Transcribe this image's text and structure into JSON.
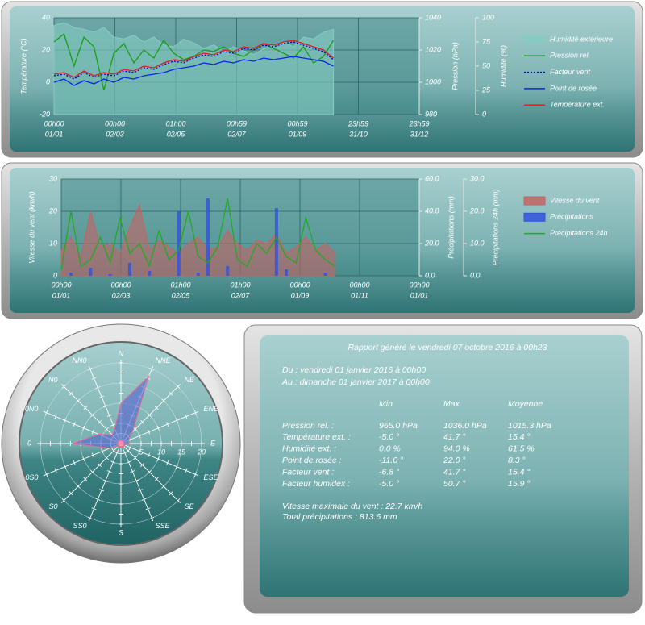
{
  "chart_data": [
    {
      "type": "line",
      "ylabel": "Température (°C)",
      "y2label": "Pression (hPa)",
      "y3label": "Humidité (%)",
      "x": [
        0,
        10,
        20,
        30,
        40,
        50,
        60,
        70,
        80,
        90,
        100,
        110,
        120,
        130,
        140,
        150,
        160,
        170,
        180,
        190,
        200,
        210,
        220,
        230,
        240,
        250,
        260,
        270,
        280
      ],
      "xlim": [
        0,
        366
      ],
      "xticks": [
        {
          "value": 0,
          "label": [
            "00h00",
            "01/01"
          ]
        },
        {
          "value": 61,
          "label": [
            "00h00",
            "02/03"
          ]
        },
        {
          "value": 122,
          "label": [
            "01h00",
            "02/05"
          ]
        },
        {
          "value": 183,
          "label": [
            "00h59",
            "02/07"
          ]
        },
        {
          "value": 244,
          "label": [
            "00h59",
            "01/09"
          ]
        },
        {
          "value": 305,
          "label": [
            "23h59",
            "31/10"
          ]
        },
        {
          "value": 366,
          "label": [
            "23h59",
            "31/12"
          ]
        }
      ],
      "ylim": [
        -20,
        40
      ],
      "yticks": [
        -20,
        0,
        20,
        40
      ],
      "y2lim": [
        980,
        1040
      ],
      "y2ticks": [
        980,
        1000,
        1020,
        1040
      ],
      "y3lim": [
        0,
        100
      ],
      "y3ticks": [
        0,
        25,
        50,
        75,
        100
      ],
      "grid": true,
      "series": [
        {
          "name": "Humidité extérieure",
          "color": "#86cbc2",
          "style": "area",
          "axis": "y3",
          "values": [
            92,
            95,
            90,
            88,
            85,
            90,
            80,
            78,
            82,
            75,
            80,
            72,
            70,
            78,
            74,
            68,
            72,
            65,
            70,
            66,
            62,
            68,
            72,
            75,
            70,
            80,
            78,
            85,
            88
          ]
        },
        {
          "name": "Pression rel.",
          "color": "#15a015",
          "style": "line",
          "axis": "y2",
          "values": [
            1025,
            1030,
            1010,
            1028,
            1022,
            995,
            1018,
            1024,
            1012,
            1020,
            1015,
            1026,
            1018,
            1014,
            1016,
            1020,
            1019,
            1022,
            1018,
            1016,
            1020,
            1024,
            1021,
            1018,
            1015,
            1022,
            1012,
            1016,
            1026
          ]
        },
        {
          "name": "Facteur vent",
          "color": "#0000cc",
          "style": "dotted",
          "axis": "y",
          "values": [
            4,
            5,
            2,
            6,
            3,
            5,
            4,
            7,
            6,
            9,
            8,
            11,
            13,
            12,
            15,
            17,
            16,
            19,
            18,
            21,
            20,
            23,
            22,
            24,
            25,
            23,
            21,
            19,
            14
          ]
        },
        {
          "name": "Point de rosée",
          "color": "#0a24ee",
          "style": "line",
          "axis": "y",
          "values": [
            0,
            2,
            -2,
            1,
            -1,
            2,
            0,
            3,
            2,
            4,
            5,
            6,
            8,
            9,
            10,
            12,
            11,
            13,
            12,
            14,
            13,
            15,
            14,
            15,
            16,
            15,
            14,
            13,
            10
          ]
        },
        {
          "name": "Température ext.",
          "color": "#dd2020",
          "style": "line",
          "axis": "y",
          "values": [
            5,
            6,
            3,
            7,
            4,
            6,
            5,
            8,
            7,
            10,
            9,
            12,
            14,
            13,
            16,
            18,
            17,
            20,
            19,
            22,
            21,
            24,
            23,
            25,
            26,
            24,
            22,
            20,
            15
          ]
        }
      ]
    },
    {
      "type": "line",
      "ylabel": "Vitesse du vent (km/h)",
      "y2label": "Précipitations (mm)",
      "y3label": "Précipitations 24h (mm)",
      "x": [
        0,
        10,
        20,
        30,
        40,
        50,
        60,
        70,
        80,
        90,
        100,
        110,
        120,
        130,
        140,
        150,
        160,
        170,
        180,
        190,
        200,
        210,
        220,
        230,
        240,
        250,
        260,
        270,
        280
      ],
      "xlim": [
        0,
        366
      ],
      "xticks": [
        {
          "value": 0,
          "label": [
            "00h00",
            "01/01"
          ]
        },
        {
          "value": 61,
          "label": [
            "00h00",
            "02/03"
          ]
        },
        {
          "value": 122,
          "label": [
            "01h00",
            "02/05"
          ]
        },
        {
          "value": 183,
          "label": [
            "01h00",
            "02/07"
          ]
        },
        {
          "value": 244,
          "label": [
            "00h00",
            "01/09"
          ]
        },
        {
          "value": 305,
          "label": [
            "00h00",
            "01/11"
          ]
        },
        {
          "value": 366,
          "label": [
            "00h00",
            "01/01"
          ]
        }
      ],
      "ylim": [
        0,
        30
      ],
      "yticks": [
        0,
        10,
        20,
        30
      ],
      "y2lim": [
        0,
        60
      ],
      "y2ticks": [
        {
          "value": 0,
          "label": "0.0"
        },
        {
          "value": 20,
          "label": "20.0"
        },
        {
          "value": 40,
          "label": "40.0"
        },
        {
          "value": 60,
          "label": "60.0"
        }
      ],
      "y3lim": [
        0,
        30
      ],
      "y3ticks": [
        {
          "value": 0,
          "label": "0.0"
        },
        {
          "value": 10,
          "label": "10.0"
        },
        {
          "value": 20,
          "label": "20.0"
        },
        {
          "value": 30,
          "label": "30.0"
        }
      ],
      "grid": true,
      "series": [
        {
          "name": "Vitesse du vent",
          "color": "#c46464",
          "style": "area",
          "axis": "y",
          "values": [
            8,
            12,
            6,
            20,
            9,
            10,
            7,
            15,
            22,
            8,
            11,
            9,
            7,
            10,
            12,
            8,
            9,
            14,
            10,
            8,
            11,
            10,
            13,
            7,
            9,
            12,
            8,
            10,
            7
          ]
        },
        {
          "name": "Précipitations",
          "color": "#3355dd",
          "style": "bar",
          "axis": "y2",
          "values": [
            0,
            2,
            0,
            5,
            0,
            1,
            0,
            8,
            0,
            3,
            0,
            0,
            40,
            0,
            2,
            48,
            0,
            6,
            0,
            0,
            0,
            0,
            42,
            4,
            0,
            0,
            0,
            2,
            0
          ]
        },
        {
          "name": "Précipitations 24h",
          "color": "#22aa22",
          "style": "line",
          "axis": "y3",
          "values": [
            2,
            20,
            3,
            5,
            12,
            4,
            18,
            7,
            10,
            3,
            14,
            5,
            8,
            20,
            6,
            4,
            9,
            24,
            5,
            3,
            10,
            7,
            12,
            6,
            4,
            18,
            8,
            5,
            3
          ]
        }
      ]
    },
    {
      "type": "radar",
      "categories": [
        "N",
        "NNE",
        "NE",
        "ENE",
        "E",
        "ESE",
        "SE",
        "SSE",
        "S",
        "SS0",
        "S0",
        "0S0",
        "0",
        "0N0",
        "N0",
        "NN0"
      ],
      "values": [
        10,
        18,
        4,
        2,
        2,
        1,
        1,
        1,
        1,
        1,
        1,
        3,
        12,
        6,
        3,
        4
      ],
      "color": "#5560d0",
      "rlim": [
        0,
        20
      ],
      "rticks": [
        5,
        10,
        15,
        20
      ]
    }
  ],
  "report": {
    "title": "Rapport généré le vendredi 07 octobre 2016 à 00h23",
    "from": "Du : vendredi 01 janvier 2016 à 00h00",
    "to": "Au : dimanche 01 janvier 2017 à 00h00",
    "columns": [
      "Min",
      "Max",
      "Moyenne"
    ],
    "rows": [
      [
        "Pression rel. :",
        "965.0 hPa",
        "1036.0 hPa",
        "1015.3 hPa"
      ],
      [
        "Température ext. :",
        "-5.0 °",
        "41.7 °",
        "15.4 °"
      ],
      [
        "Humidité ext. :",
        "0.0 %",
        "94.0 %",
        "61.5 %"
      ],
      [
        "Point de rosée :",
        "-11.0 °",
        "22.0 °",
        "8.3 °"
      ],
      [
        "Facteur vent :",
        "-6.8 °",
        "41.7 °",
        "15.4 °"
      ],
      [
        "Facteur humidex :",
        "-5.0 °",
        "50.7 °",
        "15.9 °"
      ]
    ],
    "max_wind": "Vitesse maximale du vent : 22.7 km/h",
    "total_rain": "Total précipitations : 813.6 mm"
  }
}
